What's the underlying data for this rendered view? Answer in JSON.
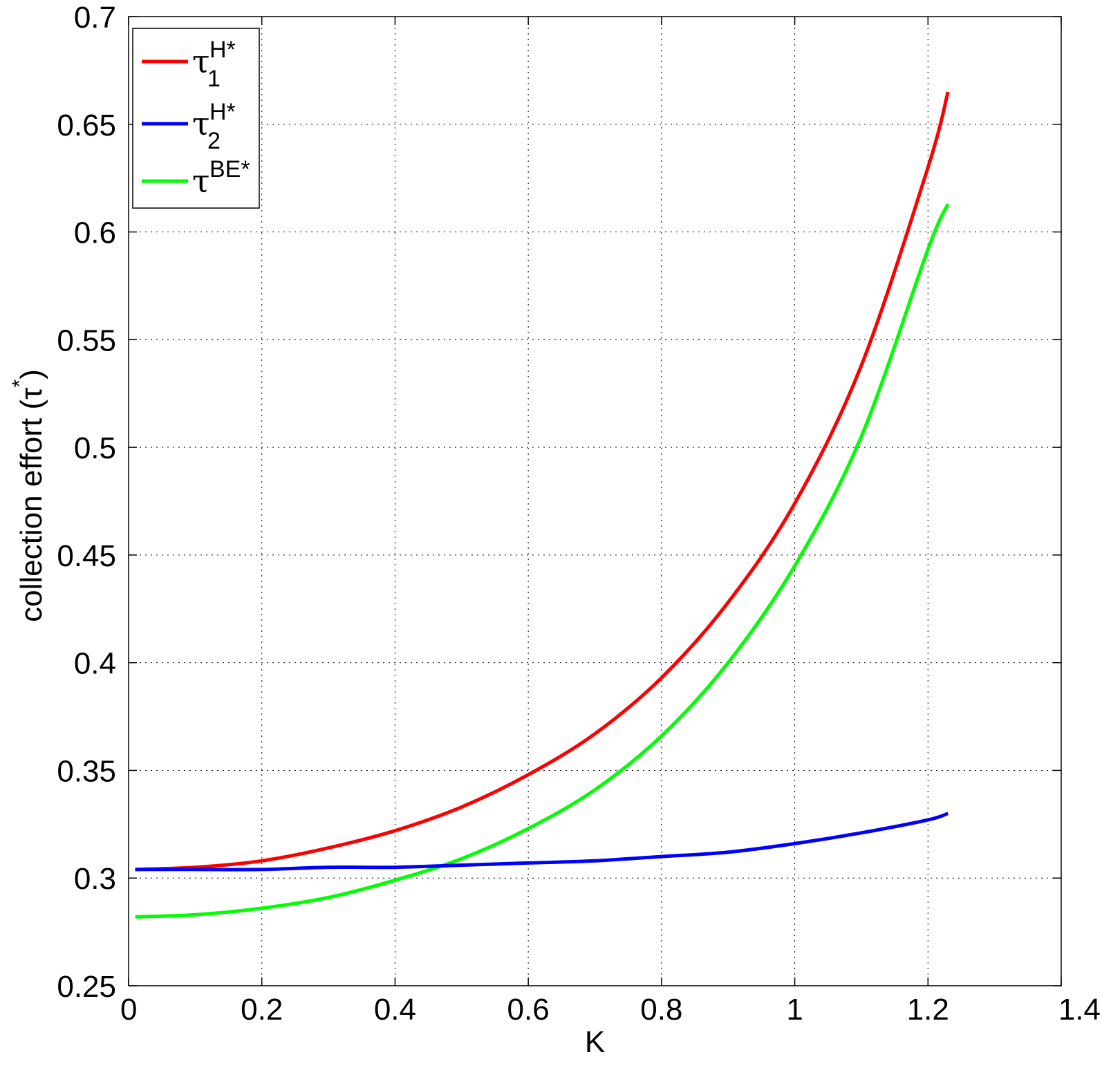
{
  "chart_data": {
    "type": "line",
    "title": "",
    "xlabel": "K",
    "ylabel": "collection effort (τ*)",
    "xlim": [
      0,
      1.4
    ],
    "ylim": [
      0.25,
      0.7
    ],
    "xticks": [
      0,
      0.2,
      0.4,
      0.6,
      0.8,
      1,
      1.2,
      1.4
    ],
    "xtick_labels": [
      "0",
      "0.2",
      "0.4",
      "0.6",
      "0.8",
      "1",
      "1.2",
      "1.4"
    ],
    "yticks": [
      0.25,
      0.3,
      0.35,
      0.4,
      0.45,
      0.5,
      0.55,
      0.6,
      0.65,
      0.7
    ],
    "ytick_labels": [
      "0.25",
      "0.3",
      "0.35",
      "0.4",
      "0.45",
      "0.5",
      "0.55",
      "0.6",
      "0.65",
      "0.7"
    ],
    "grid": true,
    "legend_position": "top-left",
    "x": [
      0.01,
      0.1,
      0.2,
      0.3,
      0.4,
      0.5,
      0.6,
      0.7,
      0.8,
      0.9,
      1.0,
      1.1,
      1.2,
      1.23
    ],
    "series": [
      {
        "name": "τ1H*",
        "legend": {
          "base": "τ",
          "sup": "H",
          "star": "*",
          "sub": "1"
        },
        "color": "#ff0000",
        "values": [
          0.304,
          0.305,
          0.308,
          0.314,
          0.322,
          0.333,
          0.348,
          0.367,
          0.393,
          0.428,
          0.474,
          0.538,
          0.63,
          0.665
        ]
      },
      {
        "name": "τ2H*",
        "legend": {
          "base": "τ",
          "sup": "H",
          "star": "*",
          "sub": "2"
        },
        "color": "#0000ff",
        "values": [
          0.304,
          0.304,
          0.304,
          0.305,
          0.305,
          0.306,
          0.307,
          0.308,
          0.31,
          0.312,
          0.316,
          0.321,
          0.327,
          0.33
        ]
      },
      {
        "name": "τBE*",
        "legend": {
          "base": "τ",
          "sup": "BE*",
          "star": "",
          "sub": ""
        },
        "color": "#00ff00",
        "values": [
          0.282,
          0.283,
          0.286,
          0.291,
          0.299,
          0.309,
          0.323,
          0.341,
          0.366,
          0.4,
          0.445,
          0.505,
          0.592,
          0.613
        ]
      }
    ]
  }
}
